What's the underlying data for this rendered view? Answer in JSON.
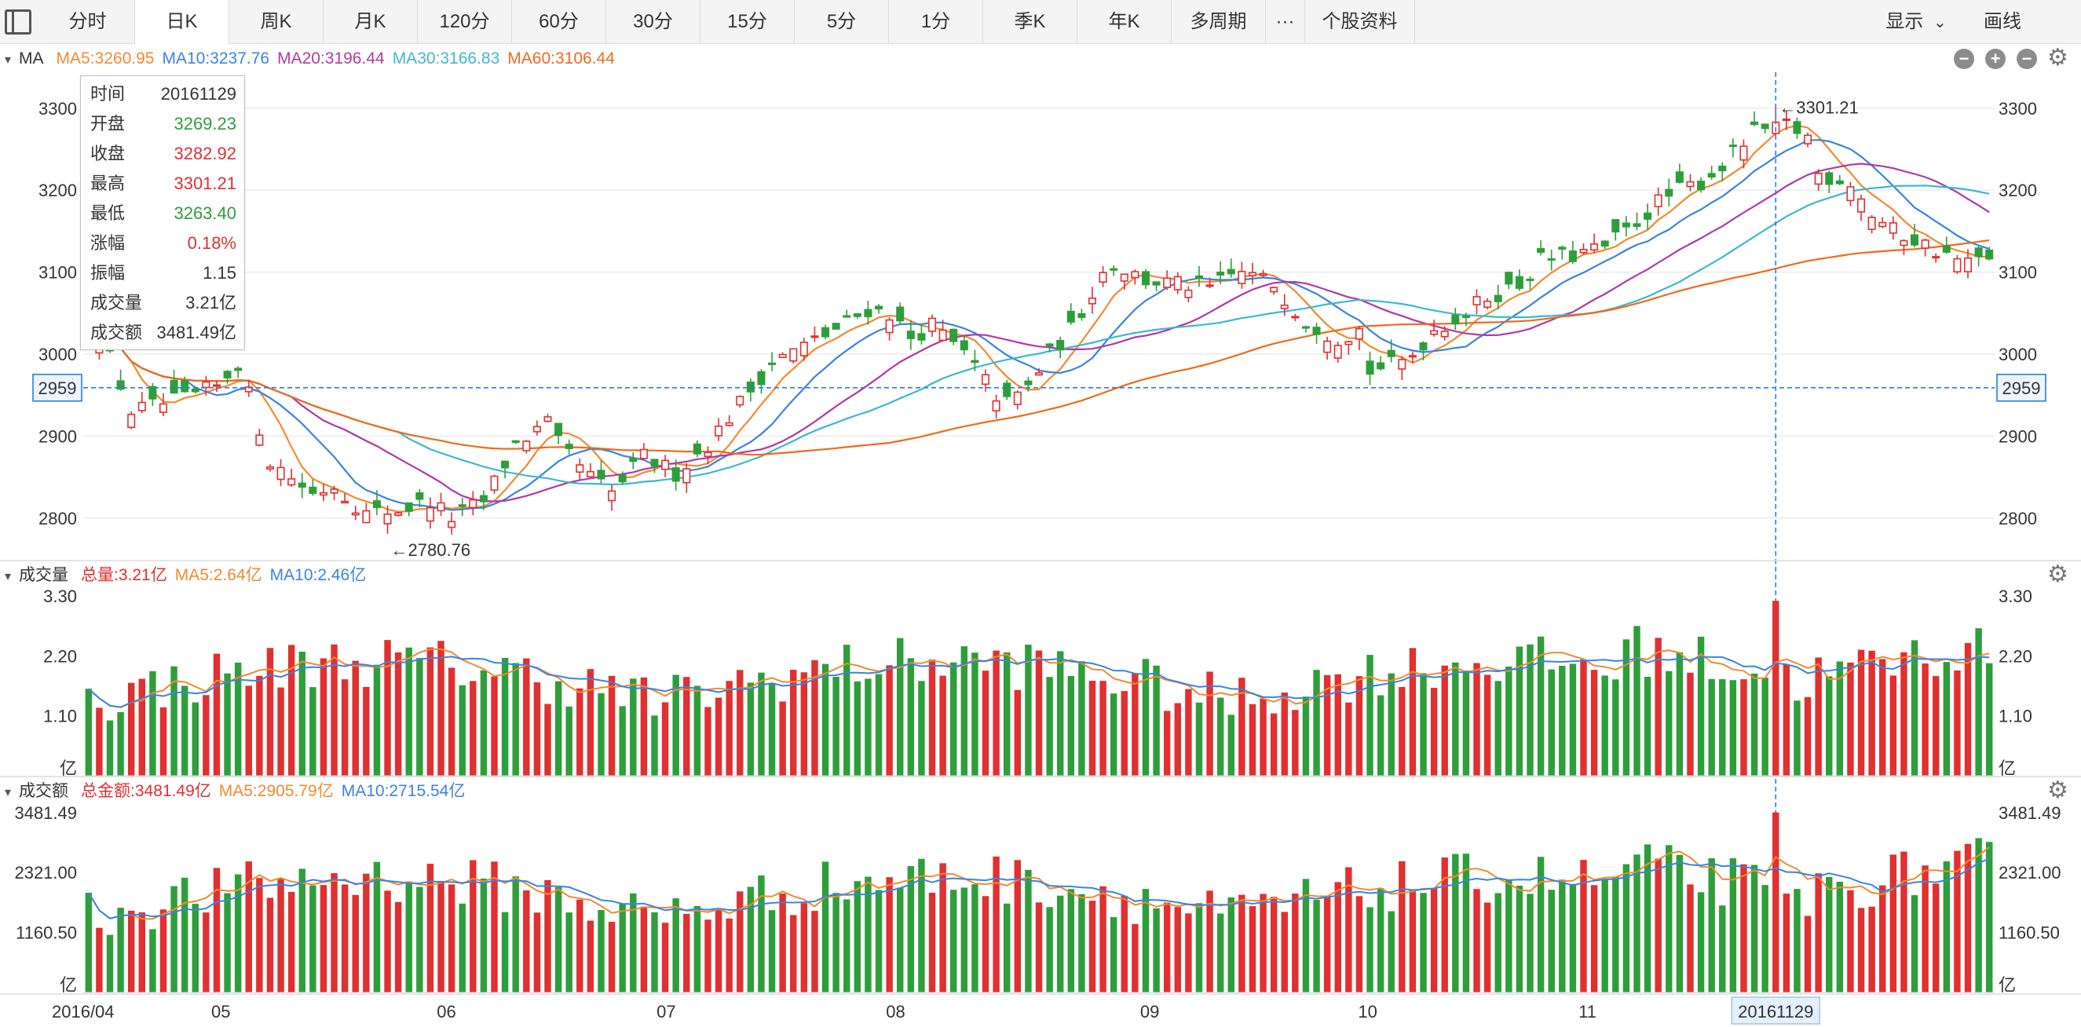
{
  "toolbar": {
    "tabs": [
      "分时",
      "日K",
      "周K",
      "月K",
      "120分",
      "60分",
      "30分",
      "15分",
      "5分",
      "1分",
      "季K",
      "年K",
      "多周期",
      "···",
      "个股资料"
    ],
    "active_tab": "日K",
    "display_label": "显示",
    "draw_label": "画线"
  },
  "ma_panel": {
    "title": "MA",
    "items": [
      {
        "text": "MA5:3260.95",
        "color": "#f28a2f"
      },
      {
        "text": "MA10:3237.76",
        "color": "#3a84e0"
      },
      {
        "text": "MA20:3196.44",
        "color": "#b03aa8"
      },
      {
        "text": "MA30:3166.83",
        "color": "#3fb7cf"
      },
      {
        "text": "MA60:3106.44",
        "color": "#f06a1c"
      }
    ],
    "y_ticks": [
      "3300",
      "3200",
      "3100",
      "3000",
      "2900",
      "2800"
    ],
    "crosshair_label": "2959",
    "high_marker": "←3301.21",
    "low_marker": "←2780.76"
  },
  "tooltip": {
    "rows": [
      {
        "k": "时间",
        "v": "20161129",
        "color": "#333333"
      },
      {
        "k": "开盘",
        "v": "3269.23",
        "color": "#2e9e3a"
      },
      {
        "k": "收盘",
        "v": "3282.92",
        "color": "#e03030"
      },
      {
        "k": "最高",
        "v": "3301.21",
        "color": "#e03030"
      },
      {
        "k": "最低",
        "v": "3263.40",
        "color": "#2e9e3a"
      },
      {
        "k": "涨幅",
        "v": "0.18%",
        "color": "#e03030"
      },
      {
        "k": "振幅",
        "v": "1.15",
        "color": "#333333"
      },
      {
        "k": "成交量",
        "v": "3.21亿",
        "color": "#333333"
      },
      {
        "k": "成交额",
        "v": "3481.49亿",
        "color": "#333333"
      }
    ]
  },
  "volume_panel": {
    "title": "成交量",
    "items": [
      {
        "text": "总量:3.21亿",
        "color": "#e03030"
      },
      {
        "text": "MA5:2.64亿",
        "color": "#f28a2f"
      },
      {
        "text": "MA10:2.46亿",
        "color": "#3a84e0"
      }
    ],
    "y_ticks": [
      "3.30",
      "2.20",
      "1.10"
    ],
    "unit": "亿"
  },
  "amount_panel": {
    "title": "成交额",
    "items": [
      {
        "text": "总金额:3481.49亿",
        "color": "#e03030"
      },
      {
        "text": "MA5:2905.79亿",
        "color": "#f28a2f"
      },
      {
        "text": "MA10:2715.54亿",
        "color": "#3a84e0"
      }
    ],
    "y_ticks": [
      "3481.49",
      "2321.00",
      "1160.50"
    ],
    "unit": "亿"
  },
  "x_axis": {
    "labels": [
      "2016/04",
      "05",
      "06",
      "07",
      "08",
      "09",
      "10",
      "11"
    ],
    "selected_date": "20161129"
  },
  "colors": {
    "up": "#e03030",
    "down": "#2e9e3a",
    "grid": "#ececec",
    "crosshair": "#2a7de1"
  },
  "chart_data": {
    "type": "candlestick",
    "title": "",
    "ylim": [
      2750,
      3340
    ],
    "bars": 179,
    "anchors": [
      [
        0,
        3060
      ],
      [
        6,
        2930
      ],
      [
        12,
        2945
      ],
      [
        16,
        2960
      ],
      [
        19,
        2990
      ],
      [
        23,
        2870
      ],
      [
        28,
        2830
      ],
      [
        31,
        2840
      ],
      [
        35,
        2805
      ],
      [
        39,
        2810
      ],
      [
        43,
        2820
      ],
      [
        46,
        2800
      ],
      [
        50,
        2820
      ],
      [
        53,
        2890
      ],
      [
        57,
        2915
      ],
      [
        59,
        2890
      ],
      [
        63,
        2850
      ],
      [
        65,
        2830
      ],
      [
        68,
        2860
      ],
      [
        70,
        2875
      ],
      [
        74,
        2855
      ],
      [
        78,
        2890
      ],
      [
        82,
        2940
      ],
      [
        86,
        2990
      ],
      [
        89,
        3010
      ],
      [
        93,
        3030
      ],
      [
        97,
        3055
      ],
      [
        100,
        3050
      ],
      [
        103,
        3020
      ],
      [
        106,
        3035
      ],
      [
        110,
        3000
      ],
      [
        113,
        2950
      ],
      [
        115,
        2940
      ],
      [
        118,
        2960
      ],
      [
        120,
        3000
      ],
      [
        123,
        3030
      ],
      [
        127,
        3100
      ],
      [
        129,
        3110
      ],
      [
        132,
        3090
      ],
      [
        136,
        3085
      ],
      [
        140,
        3080
      ],
      [
        143,
        3095
      ],
      [
        145,
        3100
      ],
      [
        149,
        3085
      ],
      [
        152,
        3040
      ],
      [
        156,
        3020
      ],
      [
        159,
        3030
      ],
      [
        161,
        2980
      ],
      [
        164,
        2990
      ],
      [
        166,
        3000
      ],
      [
        169,
        3030
      ],
      [
        172,
        3050
      ],
      [
        175,
        3070
      ],
      [
        178,
        3080
      ],
      [
        179,
        3085
      ]
    ],
    "anchors2": [
      [
        179,
        3085
      ],
      [
        182,
        3115
      ],
      [
        186,
        3120
      ],
      [
        190,
        3130
      ],
      [
        193,
        3150
      ],
      [
        196,
        3185
      ],
      [
        199,
        3200
      ],
      [
        202,
        3210
      ],
      [
        205,
        3230
      ],
      [
        209,
        3270
      ],
      [
        212,
        3280
      ],
      [
        215,
        3265
      ],
      [
        217,
        3220
      ],
      [
        220,
        3210
      ],
      [
        223,
        3170
      ],
      [
        226,
        3150
      ],
      [
        229,
        3140
      ],
      [
        232,
        3120
      ],
      [
        235,
        3110
      ],
      [
        238,
        3120
      ]
    ],
    "series": [
      {
        "name": "MA5",
        "value": 3260.95
      },
      {
        "name": "MA10",
        "value": 3237.76
      },
      {
        "name": "MA20",
        "value": 3196.44
      },
      {
        "name": "MA30",
        "value": 3166.83
      },
      {
        "name": "MA60",
        "value": 3106.44
      }
    ],
    "volume_ylim": [
      0,
      3.4
    ],
    "amount_ylim": [
      0,
      3600
    ],
    "last_volume": 3.21,
    "last_amount": 3481.49
  }
}
